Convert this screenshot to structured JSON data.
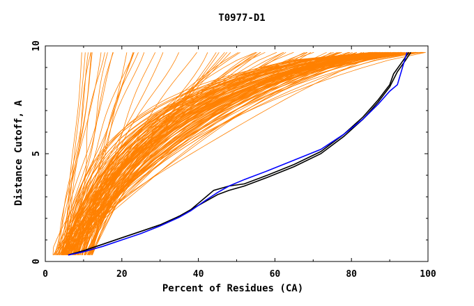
{
  "chart_data": {
    "type": "line",
    "title": "T0977-D1",
    "xlabel": "Percent of Residues (CA)",
    "ylabel": "Distance Cutoff, A",
    "xlim": [
      0,
      100
    ],
    "ylim": [
      0,
      10
    ],
    "x_ticks": [
      "0",
      "20",
      "40",
      "60",
      "80",
      "100"
    ],
    "y_ticks": [
      "0",
      "5",
      "10"
    ],
    "grid": false,
    "legend": "none",
    "background_color": "#ffffff",
    "series_color": "#ff8000",
    "highlight_colors": [
      "#000000",
      "#000000",
      "#0000ff"
    ],
    "background_models_count": 150,
    "highlight_series": [
      {
        "x": [
          6,
          10,
          15,
          20,
          25,
          30,
          35,
          38,
          42,
          44,
          48,
          52,
          58,
          65,
          72,
          78,
          83,
          87,
          90,
          91,
          93,
          95
        ],
        "y": [
          0.3,
          0.5,
          0.8,
          1.1,
          1.4,
          1.7,
          2.1,
          2.4,
          3.0,
          3.3,
          3.5,
          3.6,
          4.0,
          4.5,
          5.1,
          5.9,
          6.7,
          7.5,
          8.2,
          8.7,
          9.2,
          9.7
        ]
      },
      {
        "x": [
          6,
          10,
          15,
          20,
          25,
          30,
          35,
          38,
          42,
          45,
          48,
          52,
          58,
          65,
          72,
          78,
          83,
          87,
          90,
          92,
          94,
          95.5
        ],
        "y": [
          0.3,
          0.5,
          0.8,
          1.1,
          1.4,
          1.7,
          2.1,
          2.4,
          2.8,
          3.1,
          3.3,
          3.5,
          3.9,
          4.4,
          5.0,
          5.8,
          6.6,
          7.4,
          8.1,
          8.8,
          9.3,
          9.7
        ]
      },
      {
        "x": [
          6,
          10,
          15,
          20,
          25,
          30,
          35,
          38,
          42,
          45,
          48,
          52,
          58,
          65,
          72,
          78,
          83,
          87,
          90,
          92,
          93,
          94.5
        ],
        "y": [
          0.3,
          0.45,
          0.7,
          1.0,
          1.3,
          1.65,
          2.05,
          2.35,
          2.85,
          3.2,
          3.5,
          3.8,
          4.2,
          4.7,
          5.2,
          5.9,
          6.6,
          7.3,
          7.9,
          8.2,
          8.8,
          9.7
        ]
      }
    ]
  }
}
